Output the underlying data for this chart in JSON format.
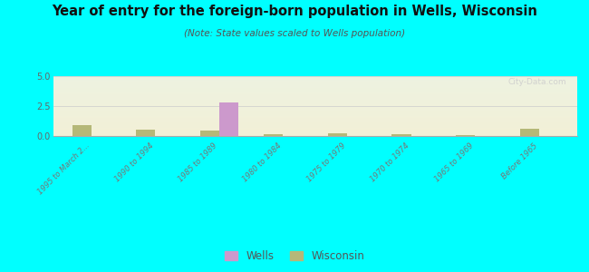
{
  "title": "Year of entry for the foreign-born population in Wells, Wisconsin",
  "subtitle": "(Note: State values scaled to Wells population)",
  "categories": [
    "1995 to March 2...",
    "1990 to 1994",
    "1985 to 1989",
    "1980 to 1984",
    "1975 to 1979",
    "1970 to 1974",
    "1965 to 1969",
    "Before 1965"
  ],
  "wells_values": [
    0,
    0,
    2.8,
    0,
    0,
    0,
    0,
    0
  ],
  "wisconsin_values": [
    0.9,
    0.55,
    0.45,
    0.15,
    0.22,
    0.18,
    0.1,
    0.6
  ],
  "wells_color": "#cc99cc",
  "wisconsin_color": "#b5b878",
  "ylim": [
    0,
    5
  ],
  "yticks": [
    0,
    2.5,
    5
  ],
  "background_color": "#00ffff",
  "watermark": "City-Data.com",
  "bar_width": 0.3,
  "legend_wells": "Wells",
  "legend_wisconsin": "Wisconsin"
}
